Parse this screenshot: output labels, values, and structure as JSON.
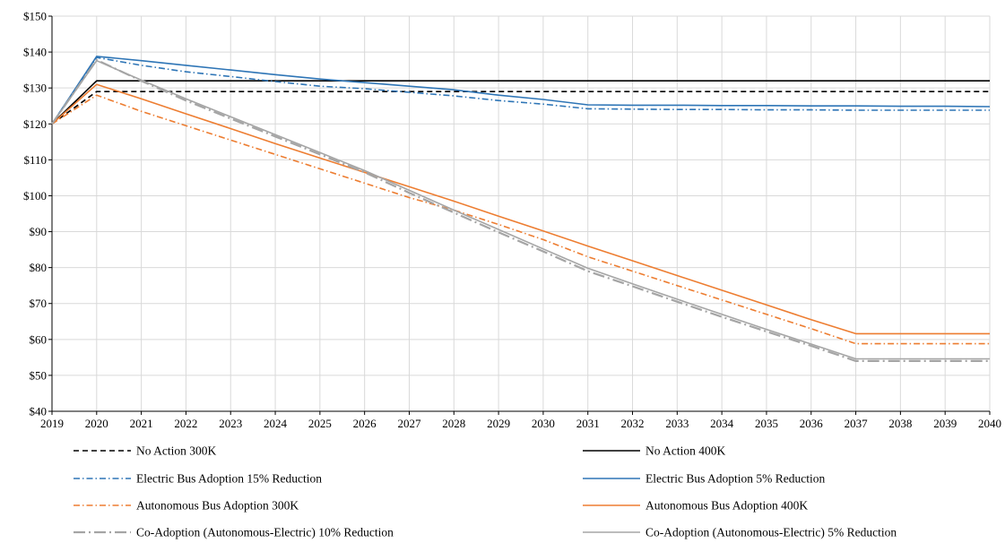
{
  "chart_data": {
    "type": "line",
    "title": "",
    "xlabel": "",
    "ylabel": "",
    "x": [
      2019,
      2020,
      2021,
      2022,
      2023,
      2024,
      2025,
      2026,
      2027,
      2028,
      2029,
      2030,
      2031,
      2032,
      2033,
      2034,
      2035,
      2036,
      2037,
      2038,
      2039,
      2040
    ],
    "x_tick_labels": [
      "2019",
      "2020",
      "2021",
      "2022",
      "2023",
      "2024",
      "2025",
      "2026",
      "2027",
      "2028",
      "2029",
      "2030",
      "2031",
      "2032",
      "2033",
      "2034",
      "2035",
      "2036",
      "2037",
      "2038",
      "2039",
      "2040"
    ],
    "ylim": [
      40,
      150
    ],
    "y_ticks": [
      40,
      50,
      60,
      70,
      80,
      90,
      100,
      110,
      120,
      130,
      140,
      150
    ],
    "y_tick_labels": [
      "$40",
      "$50",
      "$60",
      "$70",
      "$80",
      "$90",
      "$100",
      "$110",
      "$120",
      "$130",
      "$140",
      "$150"
    ],
    "grid": true,
    "legend_position": "bottom",
    "series": [
      {
        "name": "No Action 300K",
        "color": "#000000",
        "dash": "dashed",
        "values": [
          120,
          129,
          129,
          129,
          129,
          129,
          129,
          129,
          129,
          129,
          129,
          129,
          129,
          129,
          129,
          129,
          129,
          129,
          129,
          129,
          129,
          129
        ]
      },
      {
        "name": "No Action 400K",
        "color": "#000000",
        "dash": "solid",
        "values": [
          120,
          132,
          132,
          132,
          132,
          132,
          132,
          132,
          132,
          132,
          132,
          132,
          132,
          132,
          132,
          132,
          132,
          132,
          132,
          132,
          132,
          132
        ]
      },
      {
        "name": "Electric Bus  Adoption 15% Reduction",
        "color": "#2e75b6",
        "dash": "dashdot",
        "values": [
          120,
          138.5,
          136.3,
          134.5,
          133.2,
          131.8,
          130.5,
          129.8,
          128.8,
          127.8,
          126.5,
          125.5,
          124.2,
          124.1,
          124,
          124,
          123.9,
          123.9,
          123.8,
          123.8,
          123.8,
          123.8
        ]
      },
      {
        "name": "Electric Bus  Adoption 5% Reduction",
        "color": "#2e75b6",
        "dash": "solid",
        "values": [
          120,
          138.8,
          137.6,
          136.3,
          135,
          133.7,
          132.5,
          131.5,
          130.5,
          129.5,
          128,
          126.8,
          125.3,
          125.2,
          125.2,
          125.1,
          125.1,
          125,
          125,
          124.9,
          124.9,
          124.8
        ]
      },
      {
        "name": "Autonomous Bus Adoption 300K",
        "color": "#ed7d31",
        "dash": "dashdot",
        "values": [
          120,
          128,
          123.5,
          119.5,
          115.5,
          111.5,
          107.5,
          103.5,
          99.5,
          96,
          92,
          87.8,
          83,
          79,
          75,
          71,
          67,
          63,
          58.8,
          58.8,
          58.8,
          58.8
        ]
      },
      {
        "name": "Autonomous Bus Adoption 400K",
        "color": "#ed7d31",
        "dash": "solid",
        "values": [
          120,
          131,
          127,
          122.8,
          118.7,
          114.5,
          110.5,
          106.5,
          102.5,
          98.5,
          94.3,
          90.2,
          86,
          81.9,
          77.8,
          73.7,
          69.6,
          65.5,
          61.6,
          61.6,
          61.6,
          61.6
        ]
      },
      {
        "name": "Co-Adoption (Autonomous-Electric) 10% Reduction",
        "color": "#a5a5a5",
        "dash": "longdashdot",
        "values": [
          120,
          137.8,
          132,
          126.5,
          121.5,
          116.5,
          111.5,
          106.5,
          100.8,
          95.3,
          89.8,
          84.5,
          79,
          74.8,
          70.5,
          66.3,
          62.2,
          58.2,
          54,
          54,
          54,
          54
        ]
      },
      {
        "name": "Co-Adoption (Autonomous-Electric) 5% Reduction",
        "color": "#a5a5a5",
        "dash": "solid",
        "values": [
          120,
          137.6,
          132.2,
          127,
          122,
          117,
          112,
          107,
          101.5,
          96,
          90.6,
          85.2,
          79.8,
          75.5,
          71.2,
          67,
          62.8,
          58.7,
          54.6,
          54.6,
          54.6,
          54.6
        ]
      }
    ]
  }
}
